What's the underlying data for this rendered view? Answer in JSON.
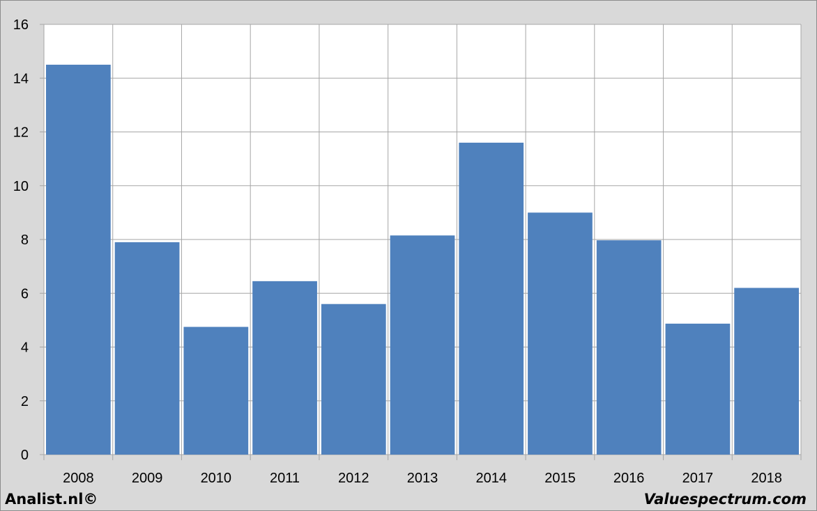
{
  "chart_data": {
    "type": "bar",
    "title": "",
    "xlabel": "",
    "ylabel": "",
    "categories": [
      "2008",
      "2009",
      "2010",
      "2011",
      "2012",
      "2013",
      "2014",
      "2015",
      "2016",
      "2017",
      "2018"
    ],
    "values": [
      14.5,
      7.9,
      4.75,
      6.45,
      5.6,
      8.15,
      11.6,
      9.0,
      7.97,
      4.87,
      6.2
    ],
    "ylim": [
      0,
      16
    ],
    "yticks": [
      "0",
      "2",
      "4",
      "6",
      "8",
      "10",
      "12",
      "14",
      "16"
    ],
    "grid": true,
    "legend": "none",
    "bar_color": "#4f81bd",
    "grid_color": "#a6a6a6",
    "plot_background": "#ffffff"
  },
  "footer": {
    "left_text": "Analist.nl©",
    "right_text": "Valuespectrum.com"
  }
}
